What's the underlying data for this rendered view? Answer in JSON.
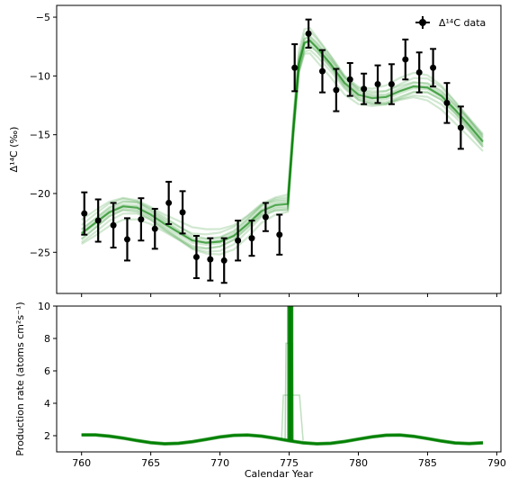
{
  "chart_data": [
    {
      "type": "scatter",
      "panel": "top",
      "ylabel": "Δ¹⁴C (‰)",
      "xlim": [
        758.2,
        790.3
      ],
      "ylim": [
        -28.5,
        -4.0
      ],
      "yticks": [
        -25,
        -20,
        -15,
        -10,
        -5
      ],
      "ytick_labels": [
        "−25",
        "−20",
        "−15",
        "−10",
        "−5"
      ],
      "xticks": [
        760,
        765,
        770,
        775,
        780,
        785,
        790
      ],
      "legend": {
        "label": "Δ¹⁴C data",
        "position": "top-right"
      },
      "colors": {
        "data": "#000000",
        "model": "#008000"
      },
      "series": [
        {
          "name": "Δ¹⁴C data",
          "x": [
            760.2,
            761.2,
            762.3,
            763.3,
            764.3,
            765.3,
            766.3,
            767.3,
            768.3,
            769.3,
            770.3,
            771.3,
            772.3,
            773.3,
            774.3,
            775.4,
            776.4,
            777.4,
            778.4,
            779.4,
            780.4,
            781.4,
            782.4,
            783.4,
            784.4,
            785.4,
            786.4,
            787.4
          ],
          "y": [
            -21.7,
            -22.3,
            -22.7,
            -23.9,
            -22.2,
            -23.0,
            -20.8,
            -21.6,
            -25.4,
            -25.6,
            -25.7,
            -24.0,
            -23.8,
            -22.0,
            -23.5,
            -9.3,
            -6.4,
            -9.6,
            -11.2,
            -10.3,
            -11.1,
            -10.7,
            -10.7,
            -8.6,
            -9.7,
            -9.3,
            -12.3,
            -14.4
          ],
          "yerr": [
            1.8,
            1.8,
            1.9,
            1.8,
            1.8,
            1.7,
            1.8,
            1.8,
            1.8,
            1.8,
            1.9,
            1.7,
            1.5,
            1.2,
            1.7,
            2.0,
            1.2,
            1.8,
            1.8,
            1.4,
            1.3,
            1.6,
            1.7,
            1.7,
            1.7,
            1.6,
            1.7,
            1.8
          ]
        },
        {
          "name": "",
          "type": "line",
          "x": [
            760,
            761,
            762,
            763,
            764,
            765,
            766,
            767,
            768,
            769,
            770,
            771,
            772,
            773,
            774,
            774.9,
            775.3,
            775.7,
            776.1,
            776.5,
            777,
            778,
            779,
            780,
            781,
            782,
            783,
            784,
            785,
            786,
            787,
            788,
            789
          ],
          "y": [
            -23.4,
            -22.5,
            -21.6,
            -21.1,
            -21.2,
            -21.8,
            -22.6,
            -23.3,
            -24.0,
            -24.2,
            -24.1,
            -23.6,
            -22.6,
            -21.5,
            -21.0,
            -20.9,
            -14.5,
            -9.0,
            -7.2,
            -7.0,
            -7.6,
            -9.0,
            -10.6,
            -11.6,
            -11.9,
            -11.8,
            -11.3,
            -10.9,
            -11.0,
            -11.7,
            -12.9,
            -14.2,
            -15.6
          ]
        }
      ]
    },
    {
      "type": "line",
      "panel": "bottom",
      "title": "",
      "xlabel": "Calendar Year",
      "ylabel": "Production rate (atoms cm²s⁻¹)",
      "xlim": [
        758.2,
        790.3
      ],
      "ylim": [
        1.0,
        10.0
      ],
      "yticks": [
        2,
        4,
        6,
        8,
        10
      ],
      "xticks": [
        760,
        765,
        770,
        775,
        780,
        785,
        790
      ],
      "colors": {
        "model": "#008000"
      },
      "series": [
        {
          "name": "",
          "x": [
            760,
            761,
            762,
            763,
            764,
            765,
            766,
            767,
            768,
            769,
            770,
            771,
            772,
            773,
            774,
            775,
            776,
            777,
            778,
            779,
            780,
            781,
            782,
            783,
            784,
            785,
            786,
            787,
            788,
            789
          ],
          "y": [
            2.05,
            2.05,
            1.97,
            1.85,
            1.7,
            1.57,
            1.5,
            1.53,
            1.63,
            1.77,
            1.92,
            2.02,
            2.04,
            1.97,
            1.84,
            1.69,
            1.56,
            1.5,
            1.53,
            1.64,
            1.79,
            1.93,
            2.03,
            2.04,
            1.96,
            1.82,
            1.67,
            1.55,
            1.51,
            1.56
          ]
        },
        {
          "name": "",
          "type": "spike",
          "x_center": 775.1,
          "peak": 10.0
        }
      ]
    }
  ],
  "x_tick_labels": [
    "760",
    "765",
    "770",
    "775",
    "780",
    "785",
    "790"
  ],
  "top_ytick_labels": [
    "−25",
    "−20",
    "−15",
    "−10",
    "−5"
  ],
  "bottom_ytick_labels": [
    "2",
    "4",
    "6",
    "8",
    "10"
  ]
}
